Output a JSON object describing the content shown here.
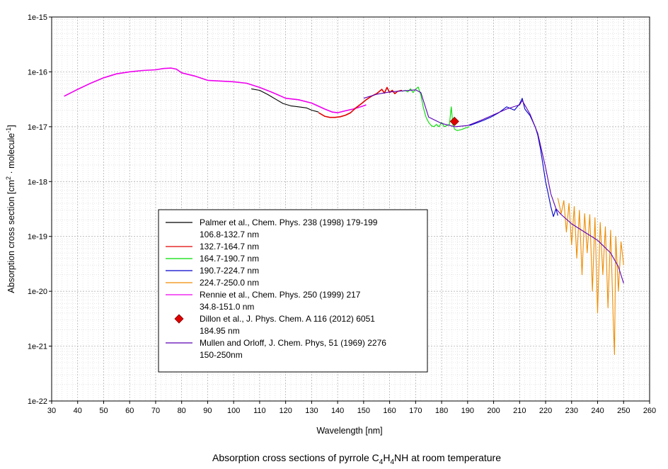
{
  "chart_data": {
    "type": "line",
    "caption": {
      "prefix": "Absorption cross sections of pyrrole C",
      "sub1": "4",
      "mid1": "H",
      "sub2": "4",
      "suffix": "NH at room temperature"
    },
    "xlabel": "Wavelength [nm]",
    "ylabel": {
      "prefix": "Absorption cross section [cm",
      "sup1": "2",
      "mid": " · molecule",
      "sup2": "-1",
      "suffix": "]"
    },
    "xlim": [
      30,
      260
    ],
    "ylim_log10": [
      -22,
      -15
    ],
    "y_scale": "log",
    "grid": true,
    "x_ticks": [
      "30",
      "40",
      "50",
      "60",
      "70",
      "80",
      "90",
      "100",
      "110",
      "120",
      "130",
      "140",
      "150",
      "160",
      "170",
      "180",
      "190",
      "200",
      "210",
      "220",
      "230",
      "240",
      "250",
      "260"
    ],
    "y_ticks": [
      "1e-22",
      "1e-21",
      "1e-20",
      "1e-19",
      "1e-18",
      "1e-17",
      "1e-16",
      "1e-15"
    ],
    "legend_position": "lower-left",
    "legend": [
      {
        "label": "Palmer et al., Chem. Phys. 238 (1998) 179-199",
        "sub": "106.8-132.7 nm",
        "color": "#000000",
        "marker": "line"
      },
      {
        "label": "132.7-164.7 nm",
        "color": "#e00000",
        "marker": "line"
      },
      {
        "label": "164.7-190.7 nm",
        "color": "#00dd00",
        "marker": "line"
      },
      {
        "label": "190.7-224.7 nm",
        "color": "#0000cc",
        "marker": "line"
      },
      {
        "label": "224.7-250.0 nm",
        "color": "#f08c00",
        "marker": "line"
      },
      {
        "label": "Rennie et al., Chem. Phys. 250 (1999) 217",
        "sub": "34.8-151.0 nm",
        "color": "#ee00ee",
        "marker": "line"
      },
      {
        "label": "Dillon et al., J. Phys. Chem. A 116 (2012) 6051",
        "sub": "184.95 nm",
        "color": "#e00000",
        "marker": "diamond"
      },
      {
        "label": "Mullen and Orloff, J. Chem. Phys, 51 (1969) 2276",
        "sub": "150-250nm",
        "color": "#5a00b4",
        "marker": "line"
      }
    ],
    "series": [
      {
        "name": "Rennie et al., Chem. Phys. 250 (1999) 217",
        "color": "#ee00ee",
        "x": [
          34.8,
          40,
          45,
          50,
          55,
          60,
          65,
          70,
          73,
          76,
          78,
          80,
          85,
          90,
          95,
          100,
          105,
          110,
          115,
          120,
          125,
          130,
          135,
          138,
          140,
          143,
          146,
          150,
          151
        ],
        "y": [
          3.6e-17,
          4.8e-17,
          6.2e-17,
          7.8e-17,
          9.2e-17,
          1e-16,
          1.06e-16,
          1.09e-16,
          1.15e-16,
          1.17e-16,
          1.12e-16,
          9.6e-17,
          8.4e-17,
          7e-17,
          6.8e-17,
          6.6e-17,
          6.2e-17,
          5.2e-17,
          4.2e-17,
          3.3e-17,
          3.1e-17,
          2.7e-17,
          2.1e-17,
          1.85e-17,
          1.8e-17,
          1.95e-17,
          2.1e-17,
          2.4e-17,
          2.5e-17
        ]
      },
      {
        "name": "Palmer et al., Chem. Phys. 238 (1998) 179-199",
        "color": "#000000",
        "x": [
          106.8,
          110,
          113,
          116,
          119,
          122,
          125,
          128,
          130,
          132.7
        ],
        "y": [
          4.9e-17,
          4.6e-17,
          3.9e-17,
          3.2e-17,
          2.65e-17,
          2.4e-17,
          2.3e-17,
          2.2e-17,
          2e-17,
          1.85e-17
        ]
      },
      {
        "name": "132.7-164.7 nm",
        "color": "#e00000",
        "x": [
          132.7,
          135,
          137,
          139,
          141,
          143,
          145,
          147,
          149,
          151,
          153,
          155,
          157,
          158,
          159,
          160,
          161,
          162,
          163,
          164.7
        ],
        "y": [
          1.8e-17,
          1.55e-17,
          1.48e-17,
          1.48e-17,
          1.52e-17,
          1.62e-17,
          1.8e-17,
          2.2e-17,
          2.6e-17,
          3.1e-17,
          3.6e-17,
          4e-17,
          4.8e-17,
          4.1e-17,
          5.2e-17,
          4.2e-17,
          4.6e-17,
          4e-17,
          4.4e-17,
          4.6e-17
        ]
      },
      {
        "name": "164.7-190.7 nm",
        "color": "#00dd00",
        "x": [
          164.7,
          166,
          167,
          168,
          169,
          170,
          171,
          172,
          173,
          174,
          175,
          176,
          177,
          178,
          179,
          180,
          181,
          182,
          183,
          183.7,
          184.3,
          185,
          186,
          187,
          188,
          189,
          190.7
        ],
        "y": [
          4.4e-17,
          4.6e-17,
          4.3e-17,
          4.9e-17,
          4.2e-17,
          4.8e-17,
          5.3e-17,
          3.8e-17,
          2.2e-17,
          1.5e-17,
          1.2e-17,
          1.05e-17,
          1e-17,
          1.1e-17,
          1e-17,
          1.2e-17,
          1e-17,
          1.05e-17,
          1.1e-17,
          2.3e-17,
          1.1e-17,
          9e-18,
          8.5e-18,
          8.7e-18,
          9e-18,
          9.4e-18,
          1e-17
        ]
      },
      {
        "name": "190.7-224.7 nm",
        "color": "#0000cc",
        "x": [
          190.7,
          193,
          196,
          199,
          202,
          205,
          208,
          210,
          211,
          212,
          214,
          216,
          217,
          218,
          219,
          220,
          221,
          222,
          223,
          224,
          224.7
        ],
        "y": [
          1.05e-17,
          1.15e-17,
          1.3e-17,
          1.5e-17,
          1.8e-17,
          2.3e-17,
          2e-17,
          2.6e-17,
          3.3e-17,
          2.1e-17,
          1.6e-17,
          1e-17,
          7e-18,
          4e-18,
          2e-18,
          1e-18,
          6e-19,
          3.5e-19,
          2.3e-19,
          3.2e-19,
          2.4e-19
        ]
      },
      {
        "name": "224.7-250.0 nm",
        "color": "#f08c00",
        "x": [
          224.7,
          226,
          227,
          228,
          229,
          230,
          231,
          232,
          233,
          234,
          235,
          236,
          237,
          238,
          239,
          240,
          241,
          242,
          243,
          244,
          245,
          246,
          246.5,
          247,
          248,
          249,
          250
        ],
        "y": [
          5e-19,
          2.6e-19,
          4.5e-19,
          1.2e-19,
          4e-19,
          7e-20,
          3.5e-19,
          4e-20,
          3e-19,
          2e-20,
          2.6e-19,
          5e-20,
          2.5e-19,
          1e-20,
          2.2e-19,
          4e-21,
          1.8e-19,
          2e-20,
          1.5e-19,
          5e-21,
          1.3e-19,
          3e-21,
          7e-22,
          1e-19,
          1e-20,
          8e-20,
          3e-20
        ]
      },
      {
        "name": "Mullen and Orloff, J. Chem. Phys, 51 (1969) 2276",
        "color": "#5a00b4",
        "x": [
          150,
          155,
          160,
          165,
          170,
          172,
          175,
          180,
          185,
          190,
          195,
          200,
          205,
          210,
          211,
          214,
          217,
          220,
          222,
          224,
          226,
          230,
          235,
          240,
          245,
          248,
          250
        ],
        "y": [
          3.3e-17,
          3.9e-17,
          4.3e-17,
          4.5e-17,
          4.7e-17,
          4.2e-17,
          1.5e-17,
          1.15e-17,
          1e-17,
          1.05e-17,
          1.3e-17,
          1.65e-17,
          2.1e-17,
          2.5e-17,
          3e-17,
          1.7e-17,
          7.5e-18,
          1.8e-18,
          6e-19,
          3.2e-19,
          2.5e-19,
          1.7e-19,
          1.2e-19,
          8.5e-20,
          5e-20,
          2.8e-20,
          1.4e-20
        ]
      },
      {
        "name": "Dillon et al., J. Phys. Chem. A 116 (2012) 6051",
        "color": "#e00000",
        "marker": "diamond",
        "x": [
          184.95
        ],
        "y": [
          1.25e-17
        ]
      }
    ]
  }
}
